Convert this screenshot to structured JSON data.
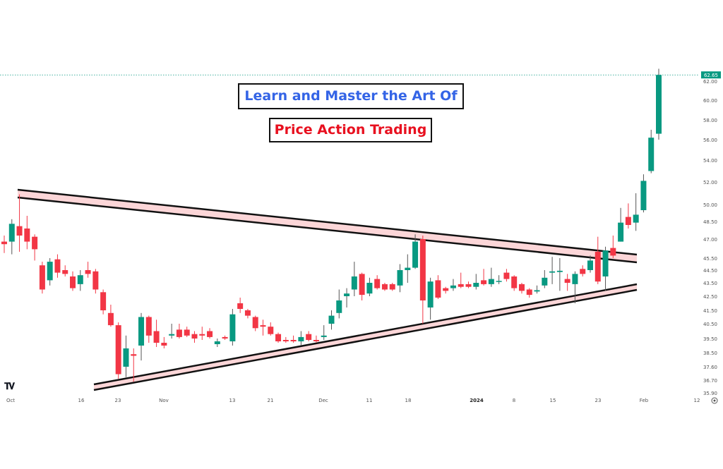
{
  "titles": {
    "line1": "Learn and Master the Art Of",
    "line2": "Price Action Trading"
  },
  "logo_text": "TV",
  "chart_data": {
    "type": "candlestick",
    "title": "Learn and Master the Art Of Price Action Trading",
    "colors": {
      "up": "#089981",
      "down": "#f23645",
      "channel_fill": "#fcd6d8",
      "channel_line": "#111111",
      "last_price": "#089981"
    },
    "last_price": "62.65",
    "y_ticks": [
      "62.00",
      "60.00",
      "58.00",
      "56.00",
      "54.00",
      "52.00",
      "50.00",
      "48.50",
      "47.00",
      "45.50",
      "44.50",
      "43.50",
      "42.50",
      "41.50",
      "40.50",
      "39.50",
      "38.50",
      "37.60",
      "36.70",
      "35.90"
    ],
    "x_ticks": [
      "Oct",
      "16",
      "23",
      "Nov",
      "13",
      "21",
      "Dec",
      "11",
      "18",
      "2024",
      "8",
      "15",
      "23",
      "Feb",
      "12"
    ],
    "ohlc": [
      [
        46.8,
        47.3,
        45.9,
        46.6
      ],
      [
        46.8,
        48.7,
        45.8,
        48.3
      ],
      [
        48.1,
        50.9,
        46.0,
        47.3
      ],
      [
        47.9,
        49.0,
        46.2,
        46.8
      ],
      [
        47.2,
        47.4,
        45.3,
        46.2
      ],
      [
        44.9,
        45.2,
        42.7,
        43.0
      ],
      [
        43.7,
        45.5,
        43.3,
        45.2
      ],
      [
        45.4,
        45.8,
        43.9,
        44.3
      ],
      [
        44.5,
        44.9,
        44.0,
        44.2
      ],
      [
        44.0,
        44.4,
        42.9,
        43.1
      ],
      [
        43.4,
        44.5,
        42.9,
        44.1
      ],
      [
        44.5,
        45.2,
        43.9,
        44.2
      ],
      [
        44.4,
        44.6,
        42.7,
        43.0
      ],
      [
        42.8,
        43.0,
        41.2,
        41.5
      ],
      [
        41.3,
        41.9,
        40.3,
        40.4
      ],
      [
        40.4,
        40.6,
        36.8,
        37.1
      ],
      [
        37.6,
        39.7,
        36.9,
        38.8
      ],
      [
        38.4,
        38.8,
        36.6,
        38.3
      ],
      [
        39.0,
        41.3,
        38.0,
        41.0
      ],
      [
        41.0,
        41.1,
        39.2,
        39.7
      ],
      [
        40.0,
        40.8,
        38.9,
        39.2
      ],
      [
        39.2,
        39.6,
        38.8,
        39.0
      ],
      [
        39.7,
        40.5,
        39.5,
        39.8
      ],
      [
        40.1,
        40.5,
        39.5,
        39.6
      ],
      [
        40.1,
        40.3,
        39.6,
        39.7
      ],
      [
        39.8,
        40.0,
        39.2,
        39.5
      ],
      [
        39.8,
        40.3,
        39.4,
        39.7
      ],
      [
        40.0,
        40.2,
        39.5,
        39.6
      ],
      [
        39.1,
        39.5,
        38.9,
        39.3
      ],
      [
        39.6,
        39.7,
        39.4,
        39.5
      ],
      [
        39.3,
        41.6,
        39.0,
        41.2
      ],
      [
        42.0,
        42.4,
        41.3,
        41.6
      ],
      [
        41.5,
        41.6,
        40.9,
        41.1
      ],
      [
        41.0,
        41.1,
        40.0,
        40.2
      ],
      [
        40.4,
        40.8,
        39.7,
        40.3
      ],
      [
        40.3,
        40.6,
        39.7,
        39.8
      ],
      [
        39.8,
        39.9,
        39.2,
        39.3
      ],
      [
        39.4,
        39.6,
        39.2,
        39.3
      ],
      [
        39.4,
        39.7,
        39.2,
        39.3
      ],
      [
        39.3,
        40.0,
        39.0,
        39.6
      ],
      [
        39.8,
        40.0,
        39.3,
        39.4
      ],
      [
        39.4,
        39.7,
        39.2,
        39.3
      ],
      [
        39.6,
        40.4,
        39.4,
        39.7
      ],
      [
        40.5,
        41.5,
        40.1,
        41.1
      ],
      [
        41.3,
        43.0,
        40.9,
        42.2
      ],
      [
        42.5,
        43.1,
        41.7,
        42.7
      ],
      [
        43.0,
        45.2,
        42.5,
        44.0
      ],
      [
        44.2,
        44.3,
        42.2,
        42.6
      ],
      [
        42.7,
        43.9,
        42.5,
        43.5
      ],
      [
        43.8,
        44.1,
        43.0,
        43.1
      ],
      [
        43.4,
        43.5,
        42.9,
        43.0
      ],
      [
        43.4,
        43.5,
        42.9,
        43.0
      ],
      [
        43.3,
        45.0,
        42.8,
        44.5
      ],
      [
        44.5,
        45.8,
        43.5,
        44.7
      ],
      [
        44.7,
        47.4,
        44.6,
        46.8
      ],
      [
        47.0,
        47.3,
        40.5,
        42.2
      ],
      [
        41.7,
        43.9,
        40.8,
        43.6
      ],
      [
        43.7,
        44.1,
        42.3,
        42.4
      ],
      [
        43.1,
        43.2,
        42.7,
        42.9
      ],
      [
        43.1,
        43.8,
        42.9,
        43.3
      ],
      [
        43.4,
        44.3,
        43.1,
        43.2
      ],
      [
        43.4,
        43.6,
        43.1,
        43.2
      ],
      [
        43.2,
        44.2,
        43.0,
        43.5
      ],
      [
        43.7,
        44.6,
        43.3,
        43.4
      ],
      [
        43.4,
        44.7,
        43.2,
        43.8
      ],
      [
        43.6,
        44.1,
        43.4,
        43.65
      ],
      [
        44.3,
        44.6,
        43.6,
        43.8
      ],
      [
        44.0,
        44.1,
        42.9,
        43.1
      ],
      [
        43.4,
        43.5,
        42.7,
        42.9
      ],
      [
        43.0,
        43.1,
        42.4,
        42.6
      ],
      [
        42.85,
        43.3,
        42.7,
        42.95
      ],
      [
        43.3,
        44.5,
        43.1,
        43.9
      ],
      [
        44.3,
        45.6,
        43.4,
        44.4
      ],
      [
        44.35,
        45.5,
        42.9,
        44.45
      ],
      [
        43.8,
        44.2,
        42.9,
        43.5
      ],
      [
        43.4,
        44.4,
        42.0,
        44.2
      ],
      [
        44.6,
        44.9,
        44.0,
        44.2
      ],
      [
        44.5,
        45.7,
        44.3,
        45.3
      ],
      [
        46.0,
        47.2,
        43.4,
        43.6
      ],
      [
        44.0,
        46.4,
        42.9,
        46.1
      ],
      [
        46.3,
        47.3,
        45.5,
        45.7
      ],
      [
        46.8,
        49.7,
        46.8,
        48.4
      ],
      [
        48.9,
        50.1,
        47.9,
        48.2
      ],
      [
        48.4,
        51.0,
        47.7,
        49.1
      ],
      [
        49.5,
        52.7,
        49.3,
        52.1
      ],
      [
        53.0,
        57.0,
        52.8,
        56.2
      ],
      [
        56.6,
        63.3,
        56.0,
        62.65
      ]
    ],
    "annotations": [
      "descending resistance channel",
      "ascending support channel"
    ]
  }
}
